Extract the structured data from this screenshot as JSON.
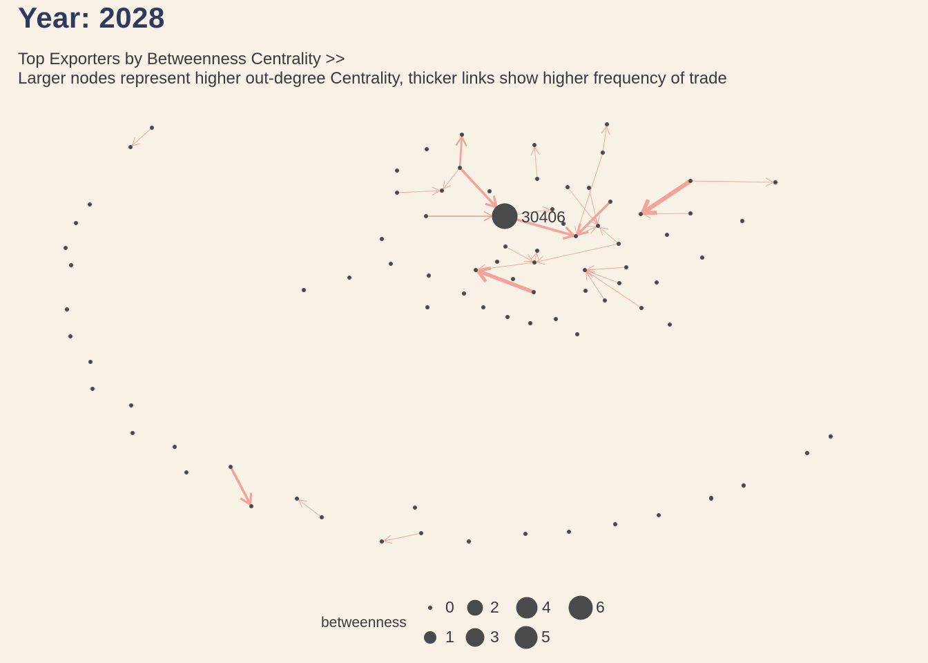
{
  "title": "Year: 2028",
  "subtitle": {
    "line1": "Top Exporters by Betweenness Centrality >>",
    "line2": "Larger nodes represent higher out-degree Centrality, thicker links show higher frequency of trade"
  },
  "colors": {
    "background": "#f8f2e6",
    "node": "#4a4a4a",
    "edge": "#f2a49c",
    "title": "#2f3a5e"
  },
  "network": {
    "labeled_node": {
      "id": "hub",
      "label": "30406"
    },
    "nodes": [
      {
        "id": "hub",
        "betweenness": 6
      },
      {
        "id": "a1"
      },
      {
        "id": "a2"
      },
      {
        "id": "b1"
      },
      {
        "id": "b2"
      },
      {
        "id": "b3"
      },
      {
        "id": "b4"
      },
      {
        "id": "c1"
      },
      {
        "id": "c2"
      },
      {
        "id": "c3"
      },
      {
        "id": "c4"
      },
      {
        "id": "c5"
      },
      {
        "id": "c6"
      },
      {
        "id": "c7"
      },
      {
        "id": "c8"
      },
      {
        "id": "c9"
      },
      {
        "id": "c10"
      },
      {
        "id": "c11"
      },
      {
        "id": "c12"
      },
      {
        "id": "c13"
      },
      {
        "id": "c14"
      },
      {
        "id": "c15"
      },
      {
        "id": "c16"
      },
      {
        "id": "c17"
      },
      {
        "id": "c18"
      },
      {
        "id": "c19"
      },
      {
        "id": "c20"
      },
      {
        "id": "c21"
      },
      {
        "id": "c22"
      },
      {
        "id": "c23"
      },
      {
        "id": "c24"
      },
      {
        "id": "c25"
      },
      {
        "id": "c26"
      },
      {
        "id": "c27"
      },
      {
        "id": "c28"
      },
      {
        "id": "c29"
      },
      {
        "id": "c30"
      },
      {
        "id": "c31"
      },
      {
        "id": "c32"
      },
      {
        "id": "c33"
      },
      {
        "id": "c34"
      },
      {
        "id": "c35"
      },
      {
        "id": "c36"
      },
      {
        "id": "c37"
      },
      {
        "id": "c38"
      },
      {
        "id": "c39"
      },
      {
        "id": "c40"
      },
      {
        "id": "c41"
      },
      {
        "id": "c42"
      },
      {
        "id": "c43"
      },
      {
        "id": "c44"
      },
      {
        "id": "c45"
      },
      {
        "id": "c46"
      },
      {
        "id": "c47"
      },
      {
        "id": "r1"
      },
      {
        "id": "r2"
      },
      {
        "id": "r3"
      },
      {
        "id": "r4"
      },
      {
        "id": "r5"
      },
      {
        "id": "r6"
      },
      {
        "id": "r7"
      },
      {
        "id": "r8"
      },
      {
        "id": "r9"
      },
      {
        "id": "r10"
      },
      {
        "id": "r11"
      },
      {
        "id": "r12"
      },
      {
        "id": "r13"
      },
      {
        "id": "r14"
      },
      {
        "id": "r15"
      },
      {
        "id": "r16"
      },
      {
        "id": "r17"
      },
      {
        "id": "r18"
      },
      {
        "id": "r19"
      },
      {
        "id": "r20"
      },
      {
        "id": "r21"
      },
      {
        "id": "r22"
      },
      {
        "id": "r23"
      },
      {
        "id": "r24"
      },
      {
        "id": "r25"
      },
      {
        "id": "r26"
      },
      {
        "id": "r27"
      },
      {
        "id": "r28"
      },
      {
        "id": "r29"
      },
      {
        "id": "r30"
      },
      {
        "id": "r31"
      },
      {
        "id": "r32"
      },
      {
        "id": "r33"
      }
    ],
    "edges": [
      {
        "from": "a1",
        "to": "a2",
        "weight": 1
      },
      {
        "from": "b1",
        "to": "b2",
        "weight": 4
      },
      {
        "from": "b3",
        "to": "b4",
        "weight": 1
      },
      {
        "from": "r25",
        "to": "r24",
        "weight": 1
      },
      {
        "from": "c3",
        "to": "c1",
        "weight": 3
      },
      {
        "from": "c3",
        "to": "c6",
        "weight": 1
      },
      {
        "from": "c5",
        "to": "c6",
        "weight": 1
      },
      {
        "from": "c3",
        "to": "hub",
        "weight": 4
      },
      {
        "from": "c8",
        "to": "hub",
        "weight": 2
      },
      {
        "from": "c12",
        "to": "c11",
        "weight": 1
      },
      {
        "from": "c7",
        "to": "c2",
        "weight": 1
      },
      {
        "from": "c15",
        "to": "c16",
        "weight": 1
      },
      {
        "from": "c15",
        "to": "c13",
        "weight": 7
      },
      {
        "from": "c14",
        "to": "c13",
        "weight": 1
      },
      {
        "from": "hub",
        "to": "c20",
        "weight": 4
      },
      {
        "from": "hub",
        "to": "c9",
        "weight": 1
      },
      {
        "from": "c22",
        "to": "c20",
        "weight": 4
      },
      {
        "from": "c12",
        "to": "c20",
        "weight": 1
      },
      {
        "from": "c21",
        "to": "c18",
        "weight": 1
      },
      {
        "from": "c19",
        "to": "c18",
        "weight": 1
      },
      {
        "from": "c20",
        "to": "c18",
        "weight": 1
      },
      {
        "from": "c29",
        "to": "c23",
        "weight": 1
      },
      {
        "from": "c24",
        "to": "c29",
        "weight": 1
      },
      {
        "from": "c28",
        "to": "c27",
        "weight": 6
      },
      {
        "from": "c29",
        "to": "c27",
        "weight": 1
      },
      {
        "from": "c34",
        "to": "c33",
        "weight": 1
      },
      {
        "from": "c36",
        "to": "c33",
        "weight": 1
      },
      {
        "from": "c37",
        "to": "c33",
        "weight": 1
      },
      {
        "from": "c35",
        "to": "c33",
        "weight": 1
      },
      {
        "from": "c26",
        "to": "c29",
        "weight": 1
      },
      {
        "from": "c26",
        "to": "c18",
        "weight": 1
      }
    ]
  },
  "legend": {
    "title": "betweenness",
    "items": [
      {
        "label": "0",
        "value": 0
      },
      {
        "label": "1",
        "value": 1
      },
      {
        "label": "2",
        "value": 2
      },
      {
        "label": "3",
        "value": 3
      },
      {
        "label": "4",
        "value": 4
      },
      {
        "label": "5",
        "value": 5
      },
      {
        "label": "6",
        "value": 6
      }
    ]
  }
}
